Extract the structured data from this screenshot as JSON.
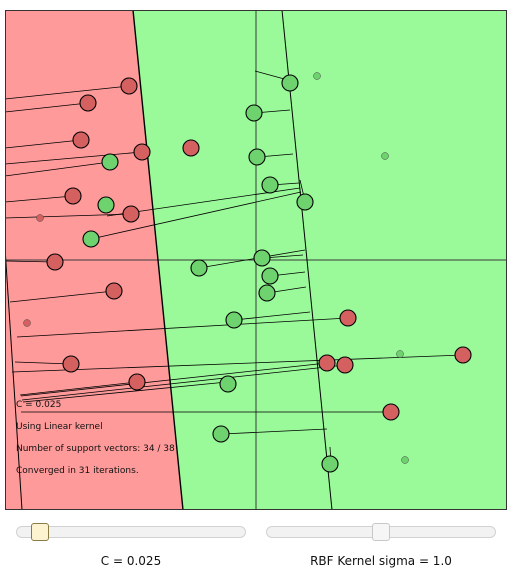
{
  "info": {
    "c_line": "C = 0.025",
    "kernel_line": "Using Linear kernel",
    "sv_line": "Number of support vectors: 34 / 38",
    "conv_line": "Converged in 31 iterations."
  },
  "sliders": {
    "c": {
      "label": "C = 0.025",
      "value": 0.09
    },
    "sigma": {
      "label": "RBF Kernel sigma = 1.0",
      "value": 0.5
    }
  },
  "colors": {
    "red_region": "#ff9a9a",
    "green_region": "#9afa9a",
    "red_point": "#d46060",
    "green_point": "#6ed26e"
  }
}
